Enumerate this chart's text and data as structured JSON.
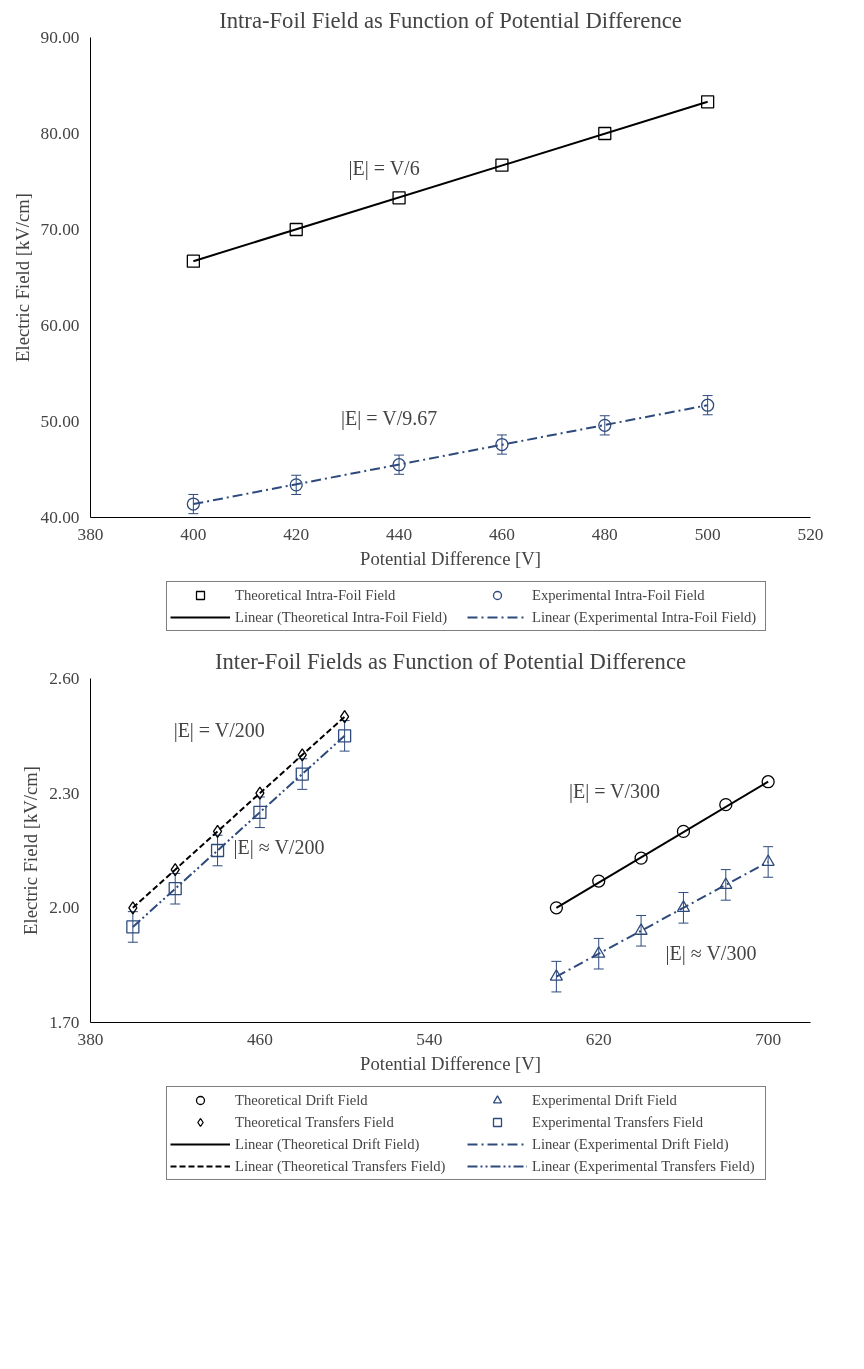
{
  "chart_data": [
    {
      "type": "scatter",
      "title": "Intra-Foil Field as Function of Potential Difference",
      "xlabel": "Potential Difference [V]",
      "ylabel": "Electric Field [kV/cm]",
      "xlim": [
        380,
        520
      ],
      "xticks": [
        380,
        400,
        420,
        440,
        460,
        480,
        500,
        520
      ],
      "ylim": [
        40,
        90
      ],
      "yticks": [
        {
          "value": 40,
          "label": "40.00"
        },
        {
          "value": 50,
          "label": "50.00"
        },
        {
          "value": 60,
          "label": "60.00"
        },
        {
          "value": 70,
          "label": "70.00"
        },
        {
          "value": 80,
          "label": "80.00"
        },
        {
          "value": 90,
          "label": "90.00"
        }
      ],
      "grid": false,
      "legend": "bottom",
      "series": [
        {
          "name": "Theoretical Intra-Foil Field",
          "marker": "square",
          "color": "#000000",
          "x": [
            400,
            420,
            440,
            460,
            480,
            500
          ],
          "values": [
            66.7,
            70.0,
            73.3,
            76.7,
            80.0,
            83.3
          ]
        },
        {
          "name": "Experimental Intra-Foil Field",
          "marker": "circle",
          "color": "#2e4a7d",
          "x": [
            400,
            420,
            440,
            460,
            480,
            500
          ],
          "values": [
            41.4,
            43.4,
            45.5,
            47.6,
            49.6,
            51.7
          ],
          "errors": [
            1,
            1,
            1,
            1,
            1,
            1
          ]
        },
        {
          "name": "Linear (Theoretical Intra-Foil Field)",
          "type": "line",
          "line_style": "solid",
          "color": "#000000",
          "x": [
            400,
            500
          ],
          "values": [
            66.7,
            83.3
          ]
        },
        {
          "name": "Linear (Experimental Intra-Foil Field)",
          "type": "line",
          "line_style": "dashdot",
          "color": "#2e4a7d",
          "x": [
            400,
            500
          ],
          "values": [
            41.4,
            51.7
          ]
        }
      ],
      "annotations": [
        "|E| = V/6",
        "|E| = V/9.67"
      ]
    },
    {
      "type": "scatter",
      "title": "Inter-Foil Fields as Function of Potential Difference",
      "xlabel": "Potential Difference [V]",
      "ylabel": "Electric Field [kV/cm]",
      "xlim": [
        380,
        720
      ],
      "xticks": [
        380,
        460,
        540,
        620,
        700
      ],
      "ylim": [
        1.7,
        2.6
      ],
      "yticks": [
        {
          "value": 1.7,
          "label": "1.70"
        },
        {
          "value": 2.0,
          "label": "2.00"
        },
        {
          "value": 2.3,
          "label": "2.30"
        },
        {
          "value": 2.6,
          "label": "2.60"
        }
      ],
      "grid": false,
      "legend": "bottom",
      "series": [
        {
          "name": "Theoretical Drift Field",
          "marker": "circle",
          "color": "#000000",
          "x": [
            600,
            620,
            640,
            660,
            680,
            700
          ],
          "values": [
            2.0,
            2.07,
            2.13,
            2.2,
            2.27,
            2.33
          ]
        },
        {
          "name": "Experimental Drift Field",
          "marker": "triangle",
          "color": "#2e4a7d",
          "x": [
            600,
            620,
            640,
            660,
            680,
            700
          ],
          "values": [
            1.82,
            1.88,
            1.94,
            2.0,
            2.06,
            2.12
          ],
          "errors": [
            0.04,
            0.04,
            0.04,
            0.04,
            0.04,
            0.04
          ]
        },
        {
          "name": "Theoretical Transfers Field",
          "marker": "diamond",
          "color": "#000000",
          "x": [
            400,
            420,
            440,
            460,
            480,
            500
          ],
          "values": [
            2.0,
            2.1,
            2.2,
            2.3,
            2.4,
            2.5
          ]
        },
        {
          "name": "Experimental Transfers Field",
          "marker": "square",
          "color": "#2e4a7d",
          "x": [
            400,
            420,
            440,
            460,
            480,
            500
          ],
          "values": [
            1.95,
            2.05,
            2.15,
            2.25,
            2.35,
            2.45
          ],
          "errors": [
            0.04,
            0.04,
            0.04,
            0.04,
            0.04,
            0.04
          ]
        },
        {
          "name": "Linear (Theoretical Drift Field)",
          "type": "line",
          "line_style": "solid",
          "color": "#000000",
          "x": [
            600,
            700
          ],
          "values": [
            2.0,
            2.33
          ]
        },
        {
          "name": "Linear (Experimental Drift Field)",
          "type": "line",
          "line_style": "dashdot",
          "color": "#2e4a7d",
          "x": [
            600,
            700
          ],
          "values": [
            1.82,
            2.12
          ]
        },
        {
          "name": "Linear (Theoretical Transfers Field)",
          "type": "line",
          "line_style": "dashed",
          "color": "#000000",
          "x": [
            400,
            500
          ],
          "values": [
            2.0,
            2.5
          ]
        },
        {
          "name": "Linear (Experimental Transfers Field)",
          "type": "line",
          "line_style": "dashdotdot",
          "color": "#2e4a7d",
          "x": [
            400,
            500
          ],
          "values": [
            1.95,
            2.45
          ]
        }
      ],
      "annotations": [
        "|E| = V/200",
        "|E| ≈ V/200",
        "|E| = V/300",
        "|E| ≈ V/300"
      ]
    }
  ]
}
